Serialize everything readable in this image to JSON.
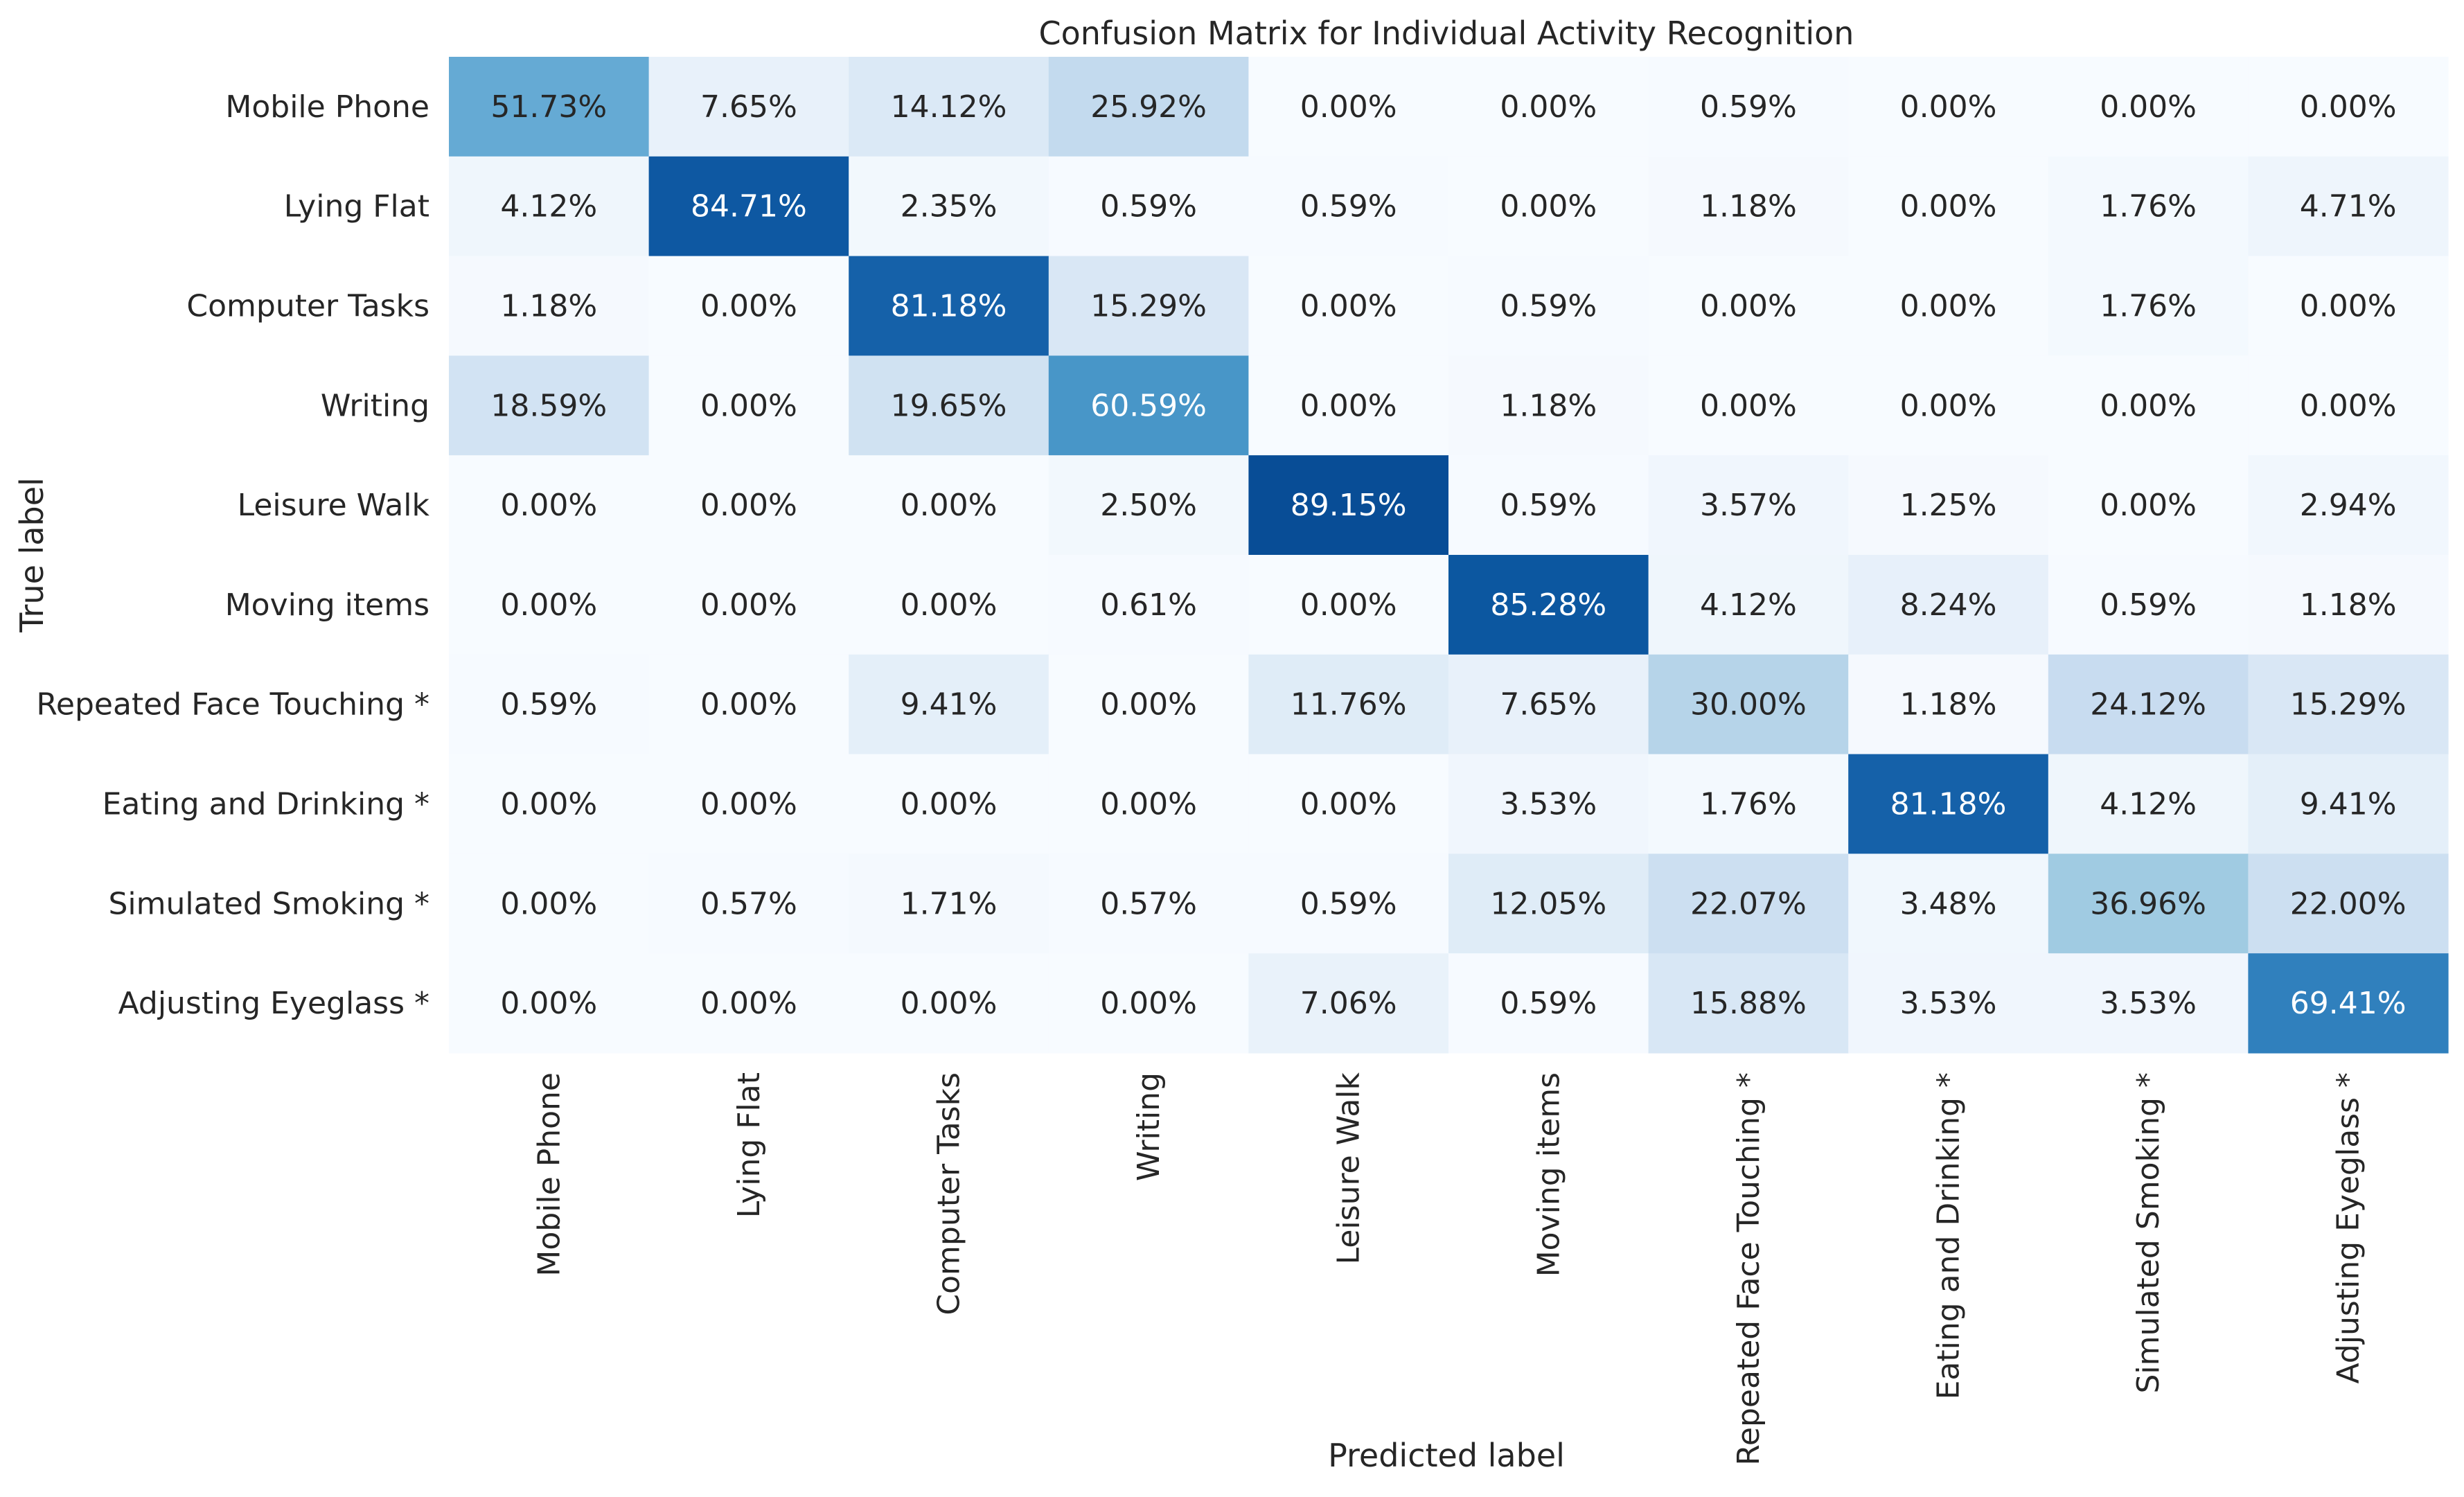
{
  "chart_data": {
    "type": "heatmap",
    "title": "Confusion Matrix for Individual Activity Recognition",
    "xlabel": "Predicted label",
    "ylabel": "True label",
    "value_suffix": "%",
    "value_range": [
      0,
      100
    ],
    "colormap": "Blues",
    "colorbar": false,
    "row_labels": [
      "Mobile Phone",
      "Lying Flat",
      "Computer Tasks",
      "Writing",
      "Leisure Walk",
      "Moving items",
      "Repeated Face Touching *",
      "Eating and Drinking *",
      "Simulated Smoking *",
      "Adjusting Eyeglass *"
    ],
    "col_labels": [
      "Mobile Phone",
      "Lying Flat",
      "Computer Tasks",
      "Writing",
      "Leisure Walk",
      "Moving items",
      "Repeated Face Touching *",
      "Eating and Drinking *",
      "Simulated Smoking *",
      "Adjusting Eyeglass *"
    ],
    "values": [
      [
        51.73,
        7.65,
        14.12,
        25.92,
        0.0,
        0.0,
        0.59,
        0.0,
        0.0,
        0.0
      ],
      [
        4.12,
        84.71,
        2.35,
        0.59,
        0.59,
        0.0,
        1.18,
        0.0,
        1.76,
        4.71
      ],
      [
        1.18,
        0.0,
        81.18,
        15.29,
        0.0,
        0.59,
        0.0,
        0.0,
        1.76,
        0.0
      ],
      [
        18.59,
        0.0,
        19.65,
        60.59,
        0.0,
        1.18,
        0.0,
        0.0,
        0.0,
        0.0
      ],
      [
        0.0,
        0.0,
        0.0,
        2.5,
        89.15,
        0.59,
        3.57,
        1.25,
        0.0,
        2.94
      ],
      [
        0.0,
        0.0,
        0.0,
        0.61,
        0.0,
        85.28,
        4.12,
        8.24,
        0.59,
        1.18
      ],
      [
        0.59,
        0.0,
        9.41,
        0.0,
        11.76,
        7.65,
        30.0,
        1.18,
        24.12,
        15.29
      ],
      [
        0.0,
        0.0,
        0.0,
        0.0,
        0.0,
        3.53,
        1.76,
        81.18,
        4.12,
        9.41
      ],
      [
        0.0,
        0.57,
        1.71,
        0.57,
        0.59,
        12.05,
        22.07,
        3.48,
        36.96,
        22.0
      ],
      [
        0.0,
        0.0,
        0.0,
        0.0,
        7.06,
        0.59,
        15.88,
        3.53,
        3.53,
        69.41
      ]
    ]
  }
}
